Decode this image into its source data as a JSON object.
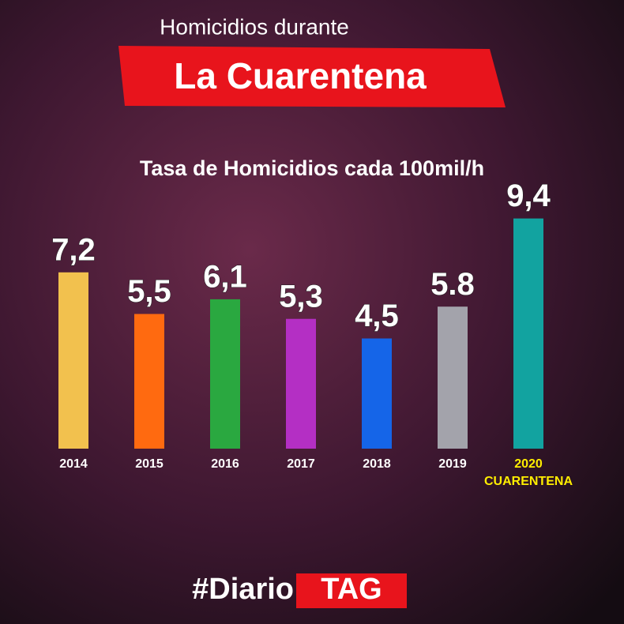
{
  "chart_data": {
    "type": "bar",
    "title": "Homicidios durante",
    "subtitle": "La Cuarentena",
    "chart_title": "Tasa de Homicidios cada 100mil/h",
    "categories": [
      "2014",
      "2015",
      "2016",
      "2017",
      "2018",
      "2019",
      "2020"
    ],
    "annotation": "CUARENTENA",
    "values": [
      7.2,
      5.5,
      6.1,
      5.3,
      4.5,
      5.8,
      9.4
    ],
    "value_labels": [
      "7,2",
      "5,5",
      "6,1",
      "5,3",
      "4,5",
      "5.8",
      "9,4"
    ],
    "colors": [
      "#f2c14e",
      "#ff6a10",
      "#2aa840",
      "#b42fc4",
      "#1565e8",
      "#a3a3ab",
      "#12a3a0"
    ],
    "footer": [
      "#Diario",
      "TAG"
    ]
  }
}
